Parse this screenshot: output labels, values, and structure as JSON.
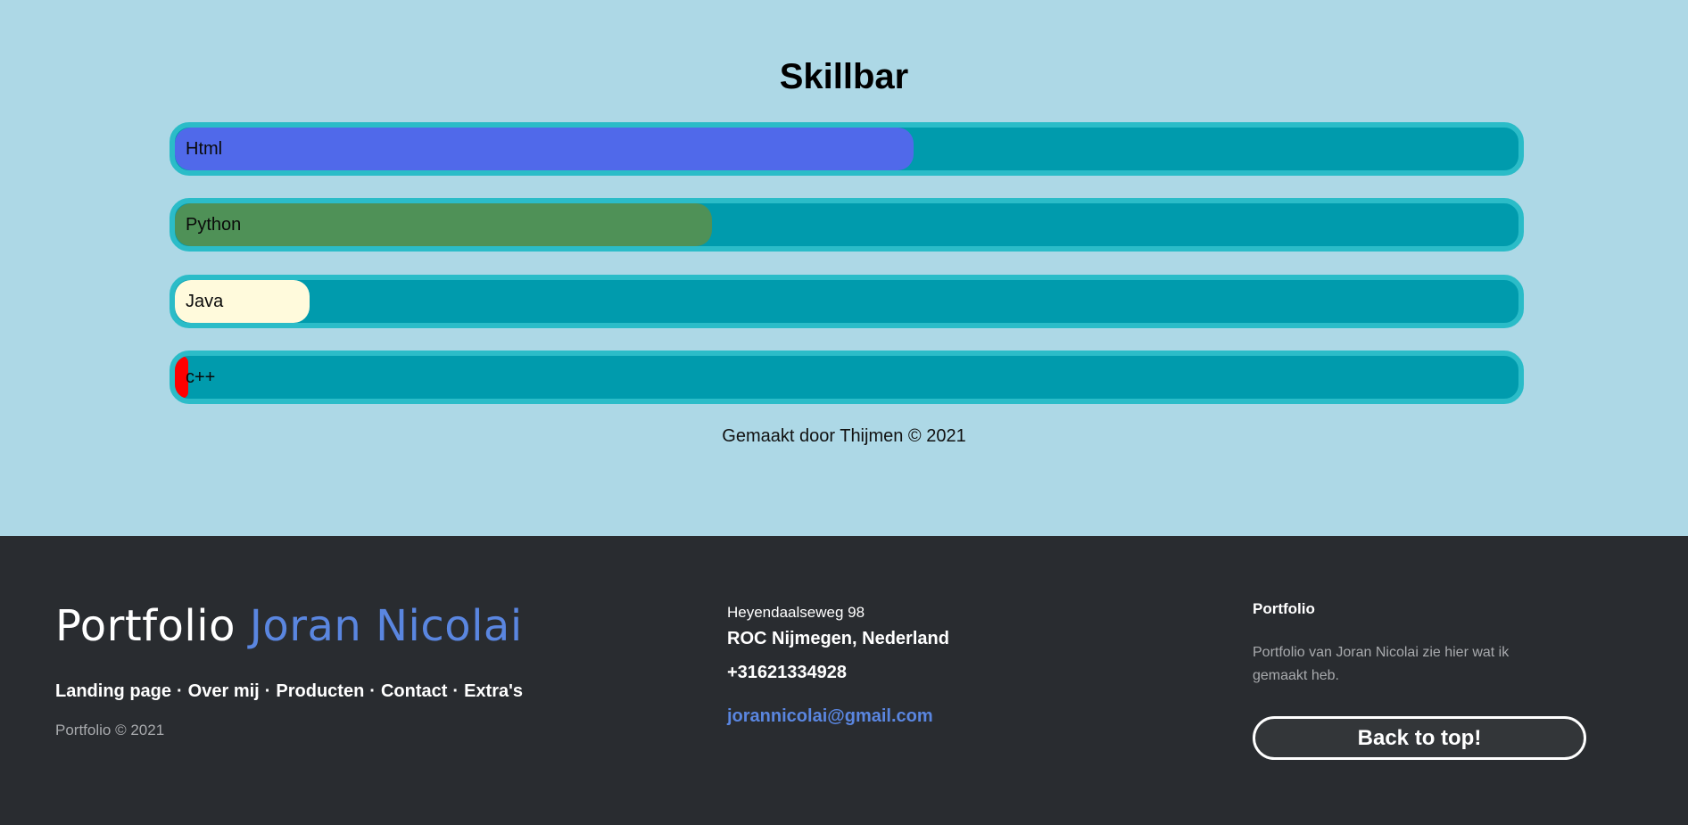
{
  "skillbar_section": {
    "title": "Skillbar",
    "skills": [
      {
        "label": "Html",
        "level_percent": 55,
        "color": "#5069ea"
      },
      {
        "label": "Python",
        "level_percent": 40,
        "color": "#4f9157"
      },
      {
        "label": "Java",
        "level_percent": 10,
        "color": "#fffadc"
      },
      {
        "label": "c++",
        "level_percent": 1,
        "color": "#ff0000"
      }
    ],
    "credit": "Gemaakt door Thijmen © 2021"
  },
  "footer": {
    "brand": {
      "prefix": "Portfolio",
      "name": "Joran Nicolai"
    },
    "nav": [
      "Landing page",
      "Over mij",
      "Producten",
      "Contact",
      "Extra's"
    ],
    "nav_separator": "·",
    "copyright": "Portfolio © 2021",
    "address_street": "Heyendaalseweg 98",
    "address_city": "ROC Nijmegen, Nederland",
    "phone": "+31621334928",
    "email": "jorannicolai@gmail.com",
    "about_heading": "Portfolio",
    "about_text": "Portfolio van Joran Nicolai zie hier wat ik gemaakt heb.",
    "back_to_top": "Back to top!"
  },
  "colors": {
    "page_background": "#add8e6",
    "bar_track": "#009bad",
    "bar_border": "#2bbcc8",
    "footer_background": "#292c30",
    "accent": "#5a86e0"
  }
}
